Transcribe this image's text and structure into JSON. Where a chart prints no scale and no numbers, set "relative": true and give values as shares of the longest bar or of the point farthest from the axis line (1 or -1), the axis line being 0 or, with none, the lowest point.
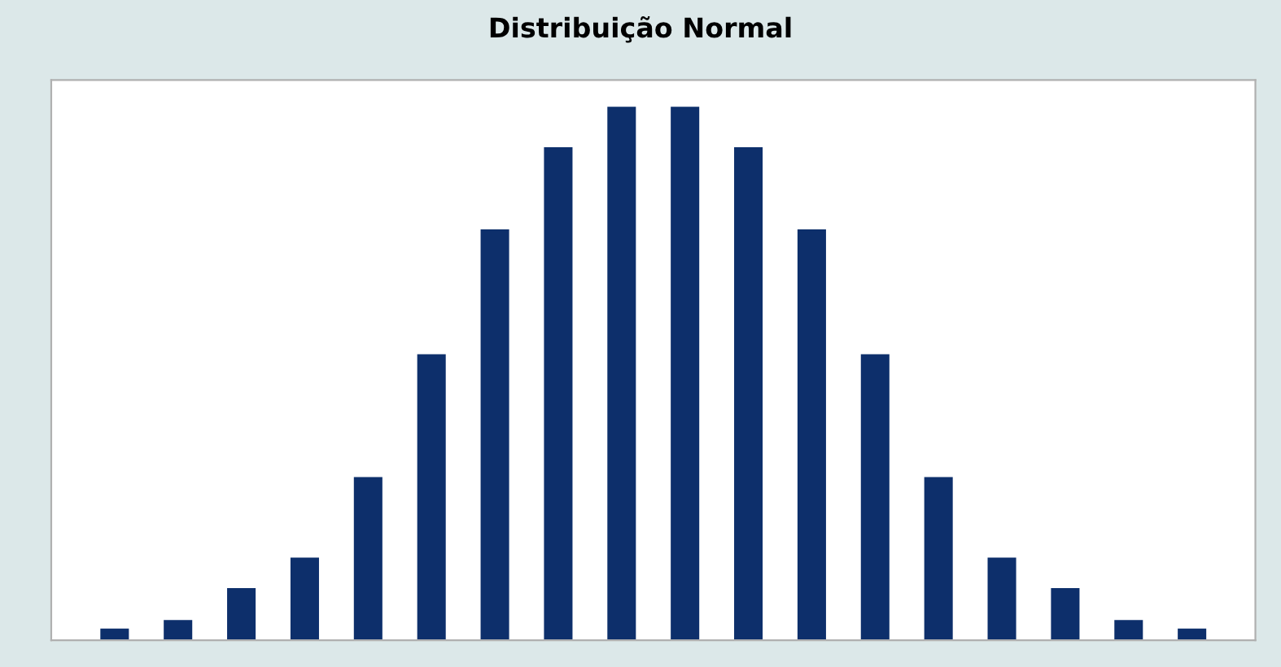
{
  "chart_data": {
    "type": "bar",
    "title": "Distribuição Normal",
    "relative": true,
    "categories": [
      null,
      null,
      null,
      null,
      null,
      null,
      null,
      null,
      null,
      null,
      null,
      null,
      null,
      null,
      null,
      null,
      null,
      null
    ],
    "values": [
      0.022,
      0.038,
      0.098,
      0.155,
      0.306,
      0.536,
      0.77,
      0.924,
      1,
      1,
      0.924,
      0.77,
      0.536,
      0.306,
      0.155,
      0.098,
      0.038,
      0.022
    ],
    "color": "#0d2f6b",
    "grid": false,
    "legend": false
  }
}
